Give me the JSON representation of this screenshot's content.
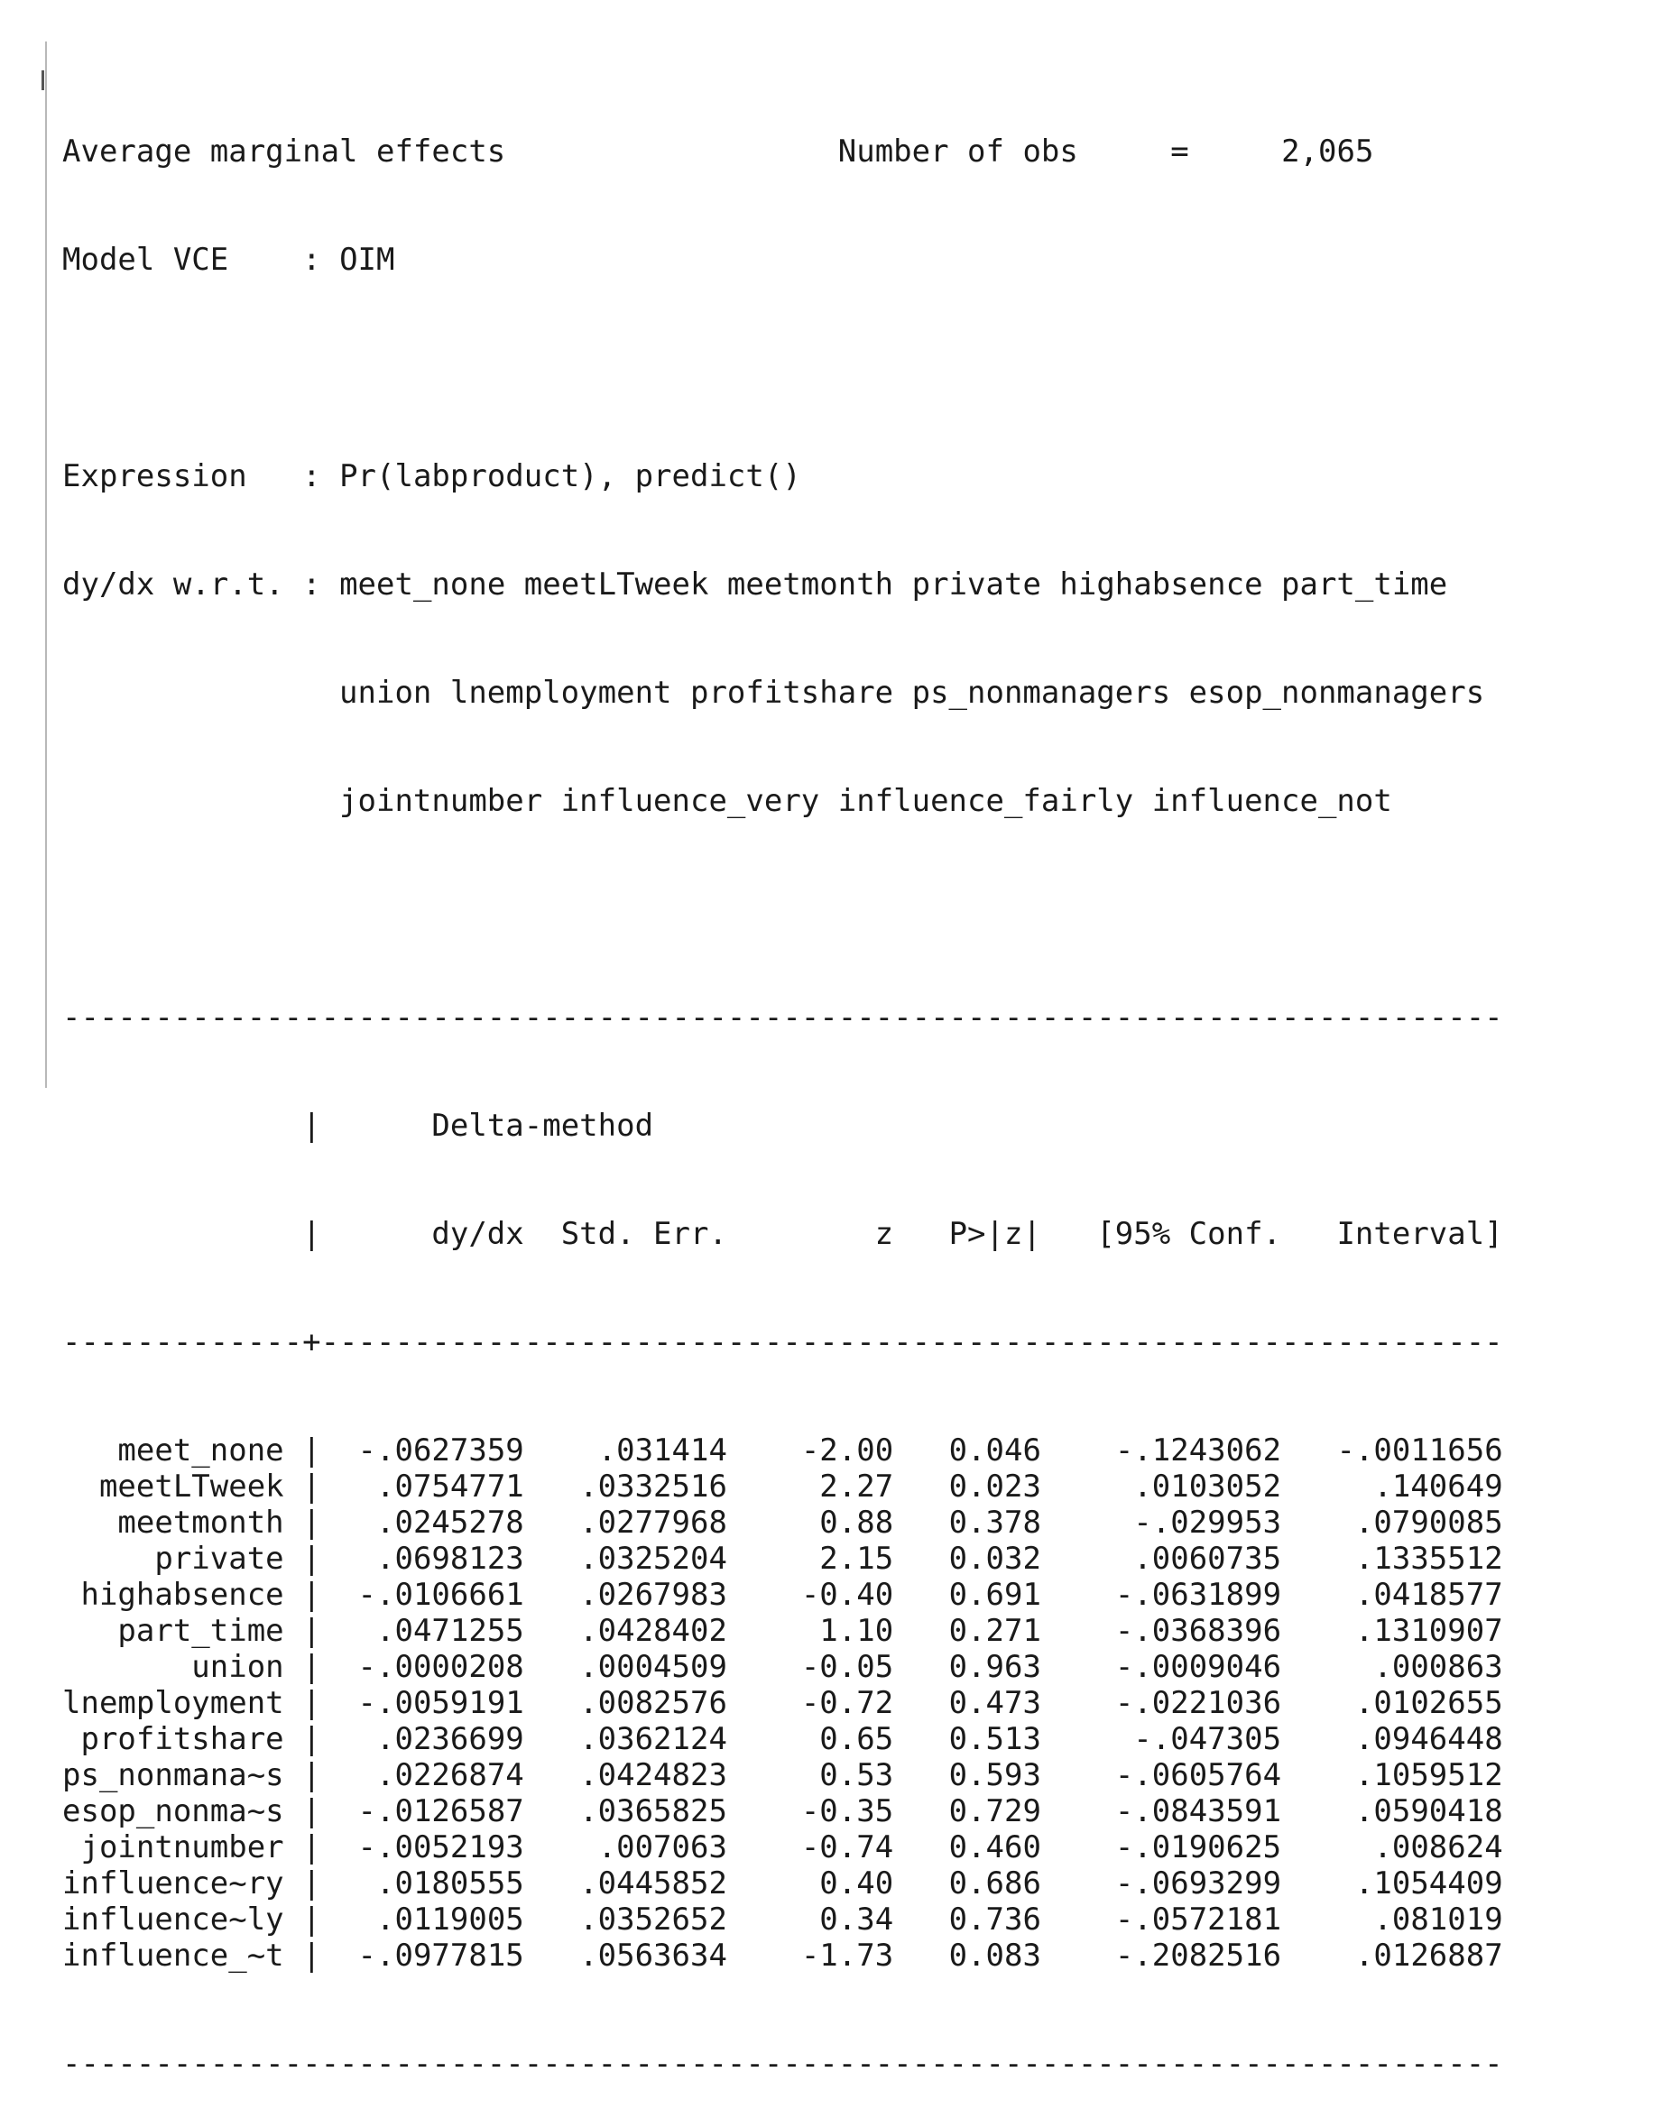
{
  "header": {
    "title": "Average marginal effects",
    "nobs_label": "Number of obs",
    "nobs_eq": "=",
    "nobs_value": "2,065",
    "vce_label": "Model VCE",
    "vce_value": "OIM",
    "expression_label": "Expression",
    "expression_value": "Pr(labproduct), predict()",
    "wrt_label": "dy/dx w.r.t.",
    "wrt_lines": [
      "meet_none meetLTweek meetmonth private highabsence part_time",
      "union lnemployment profitshare ps_nonmanagers esop_nonmanagers",
      "jointnumber influence_very influence_fairly influence_not"
    ]
  },
  "table": {
    "header_top": "Delta-method",
    "columns": [
      "dy/dx",
      "Std. Err.",
      "z",
      "P>|z|",
      "[95% Conf.",
      "Interval]"
    ],
    "rows": [
      {
        "var": "meet_none",
        "dydx": "-.0627359",
        "se": ".031414",
        "z": "-2.00",
        "p": "0.046",
        "lo": "-.1243062",
        "hi": "-.0011656"
      },
      {
        "var": "meetLTweek",
        "dydx": ".0754771",
        "se": ".0332516",
        "z": "2.27",
        "p": "0.023",
        "lo": ".0103052",
        "hi": ".140649"
      },
      {
        "var": "meetmonth",
        "dydx": ".0245278",
        "se": ".0277968",
        "z": "0.88",
        "p": "0.378",
        "lo": "-.029953",
        "hi": ".0790085"
      },
      {
        "var": "private",
        "dydx": ".0698123",
        "se": ".0325204",
        "z": "2.15",
        "p": "0.032",
        "lo": ".0060735",
        "hi": ".1335512"
      },
      {
        "var": "highabsence",
        "dydx": "-.0106661",
        "se": ".0267983",
        "z": "-0.40",
        "p": "0.691",
        "lo": "-.0631899",
        "hi": ".0418577"
      },
      {
        "var": "part_time",
        "dydx": ".0471255",
        "se": ".0428402",
        "z": "1.10",
        "p": "0.271",
        "lo": "-.0368396",
        "hi": ".1310907"
      },
      {
        "var": "union",
        "dydx": "-.0000208",
        "se": ".0004509",
        "z": "-0.05",
        "p": "0.963",
        "lo": "-.0009046",
        "hi": ".000863"
      },
      {
        "var": "lnemployment",
        "dydx": "-.0059191",
        "se": ".0082576",
        "z": "-0.72",
        "p": "0.473",
        "lo": "-.0221036",
        "hi": ".0102655"
      },
      {
        "var": "profitshare",
        "dydx": ".0236699",
        "se": ".0362124",
        "z": "0.65",
        "p": "0.513",
        "lo": "-.047305",
        "hi": ".0946448"
      },
      {
        "var": "ps_nonmana~s",
        "dydx": ".0226874",
        "se": ".0424823",
        "z": "0.53",
        "p": "0.593",
        "lo": "-.0605764",
        "hi": ".1059512"
      },
      {
        "var": "esop_nonma~s",
        "dydx": "-.0126587",
        "se": ".0365825",
        "z": "-0.35",
        "p": "0.729",
        "lo": "-.0843591",
        "hi": ".0590418"
      },
      {
        "var": "jointnumber",
        "dydx": "-.0052193",
        "se": ".007063",
        "z": "-0.74",
        "p": "0.460",
        "lo": "-.0190625",
        "hi": ".008624"
      },
      {
        "var": "influence~ry",
        "dydx": ".0180555",
        "se": ".0445852",
        "z": "0.40",
        "p": "0.686",
        "lo": "-.0693299",
        "hi": ".1054409"
      },
      {
        "var": "influence~ly",
        "dydx": ".0119005",
        "se": ".0352652",
        "z": "0.34",
        "p": "0.736",
        "lo": "-.0572181",
        "hi": ".081019"
      },
      {
        "var": "influence_~t",
        "dydx": "-.0977815",
        "se": ".0563634",
        "z": "-1.73",
        "p": "0.083",
        "lo": "-.2082516",
        "hi": ".0126887"
      }
    ]
  }
}
